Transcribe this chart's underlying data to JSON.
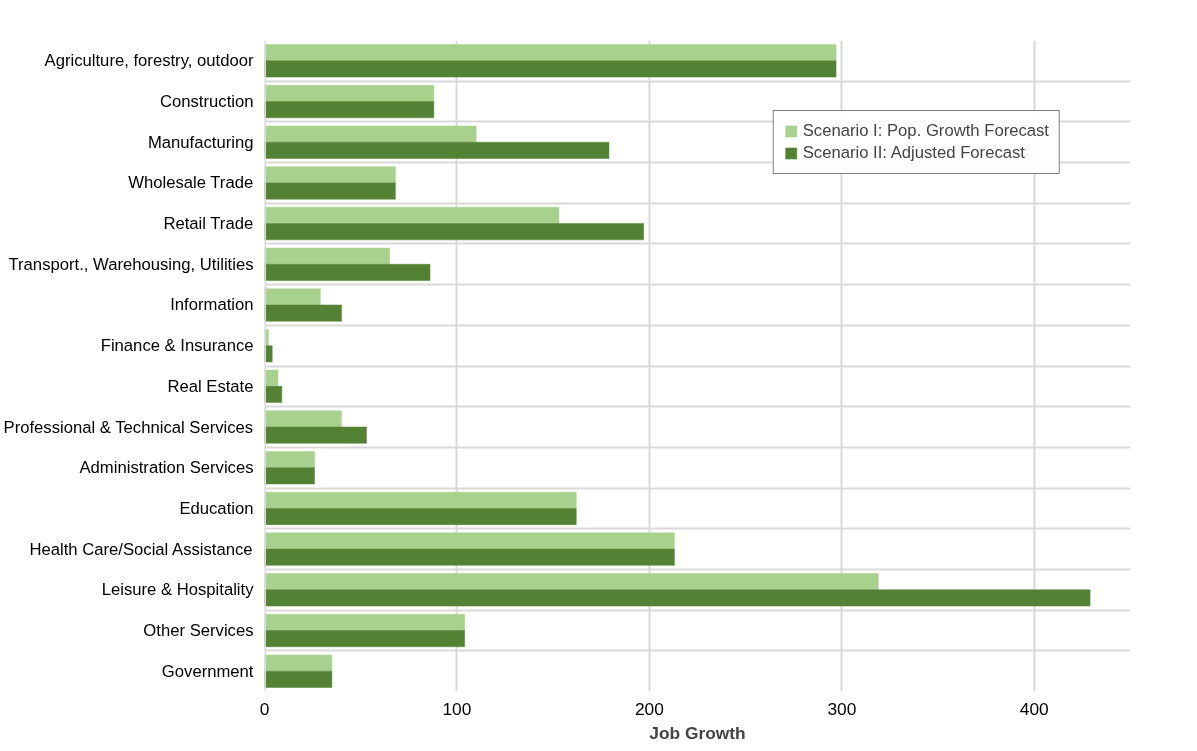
{
  "chart_data": {
    "type": "bar",
    "orientation": "horizontal",
    "xlabel": "Job Growth",
    "categories": [
      "Agriculture, forestry, outdoor",
      "Construction",
      "Manufacturing",
      "Wholesale Trade",
      "Retail Trade",
      "Transport., Warehousing, Utilities",
      "Information",
      "Finance & Insurance",
      "Real Estate",
      "Professional & Technical Services",
      "Administration Services",
      "Education",
      "Health Care/Social Assistance",
      "Leisure & Hospitality",
      "Other Services",
      "Government"
    ],
    "series": [
      {
        "name": "Scenario I: Pop. Growth Forecast",
        "color": "#a9d18e",
        "values": [
          297,
          88,
          110,
          68,
          153,
          65,
          29,
          2,
          7,
          40,
          26,
          162,
          213,
          319,
          104,
          35
        ]
      },
      {
        "name": "Scenario II: Adjusted Forecast",
        "color": "#548235",
        "values": [
          297,
          88,
          179,
          68,
          197,
          86,
          40,
          4,
          9,
          53,
          26,
          162,
          213,
          429,
          104,
          35
        ]
      }
    ],
    "xlim": [
      0,
      450
    ],
    "xticks": [
      0,
      100,
      200,
      300,
      400
    ],
    "grid": true,
    "legend": "top right"
  }
}
